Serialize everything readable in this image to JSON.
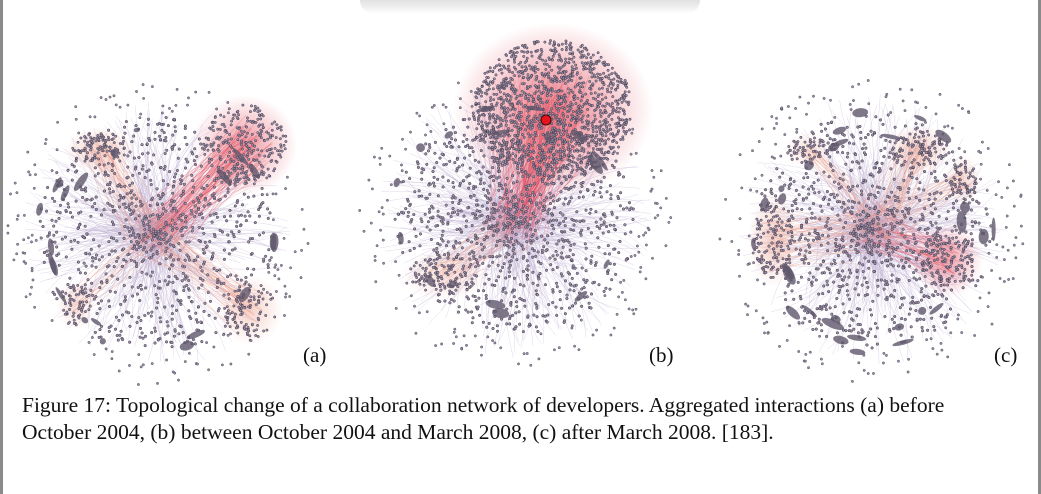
{
  "figure": {
    "panels": [
      {
        "id": "a",
        "label": "(a)",
        "period": "before October 2004"
      },
      {
        "id": "b",
        "label": "(b)",
        "period": "between October 2004 and March 2008"
      },
      {
        "id": "c",
        "label": "(c)",
        "period": "after March 2008"
      }
    ],
    "caption": "Figure 17: Topological change of a collaboration network of developers. Aggregated interactions (a) before October 2004, (b) between October 2004 and March 2008, (c) after March 2008. [183].",
    "colors": {
      "node_fill": "#9a8fa6",
      "node_stroke": "#3e3648",
      "edge_base": "#b7a9cf",
      "edge_hot": "#e0485a",
      "edge_warm": "#e8907a",
      "hub": "#e8141c"
    }
  }
}
